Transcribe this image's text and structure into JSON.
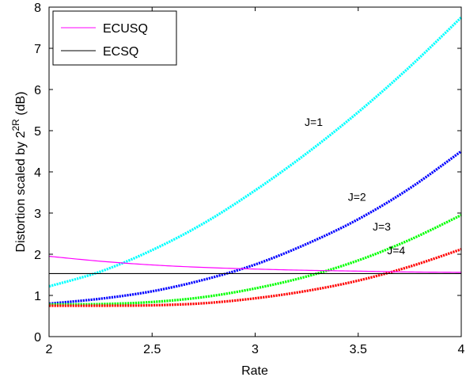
{
  "chart_data": {
    "type": "line",
    "title": "",
    "xlabel": "Rate",
    "ylabel_main": "Distortion scaled by 2",
    "ylabel_sup": "2R",
    "ylabel_unit": " (dB)",
    "xlim": [
      2,
      4
    ],
    "ylim": [
      0,
      8
    ],
    "xticks": [
      2,
      2.5,
      3,
      3.5,
      4
    ],
    "yticks": [
      0,
      1,
      2,
      3,
      4,
      5,
      6,
      7,
      8
    ],
    "xtick_labels": [
      "2",
      "2.5",
      "3",
      "3.5",
      "4"
    ],
    "ytick_labels": [
      "0",
      "1",
      "2",
      "3",
      "4",
      "5",
      "6",
      "7",
      "8"
    ],
    "grid": false,
    "legend_position": "top-left",
    "series": [
      {
        "name": "ECUSQ",
        "color": "#ff00ff",
        "style": "solid",
        "x": [
          2,
          2.25,
          2.5,
          2.75,
          3,
          3.25,
          3.5,
          3.75,
          4
        ],
        "y": [
          1.95,
          1.83,
          1.74,
          1.68,
          1.64,
          1.61,
          1.59,
          1.57,
          1.56
        ]
      },
      {
        "name": "ECSQ",
        "color": "#000000",
        "style": "solid",
        "x": [
          2,
          4
        ],
        "y": [
          1.53,
          1.53
        ]
      }
    ],
    "curves": [
      {
        "label": "J=1",
        "color": "#00ffff",
        "style": "dotted",
        "x": [
          2,
          2.25,
          2.5,
          2.75,
          3,
          3.25,
          3.5,
          3.75,
          4
        ],
        "y": [
          1.22,
          1.58,
          2.1,
          2.75,
          3.55,
          4.45,
          5.45,
          6.55,
          7.75
        ]
      },
      {
        "label": "J=2",
        "color": "#0000ff",
        "style": "dotted",
        "x": [
          2,
          2.25,
          2.5,
          2.75,
          3,
          3.25,
          3.5,
          3.75,
          4
        ],
        "y": [
          0.8,
          0.92,
          1.1,
          1.38,
          1.75,
          2.25,
          2.85,
          3.6,
          4.5
        ]
      },
      {
        "label": "J=3",
        "color": "#00ff00",
        "style": "dotted",
        "x": [
          2,
          2.25,
          2.5,
          2.75,
          3,
          3.25,
          3.5,
          3.75,
          4
        ],
        "y": [
          0.78,
          0.79,
          0.84,
          0.96,
          1.17,
          1.46,
          1.85,
          2.35,
          2.95
        ]
      },
      {
        "label": "J=4",
        "color": "#ff0000",
        "style": "dotted",
        "x": [
          2,
          2.25,
          2.5,
          2.75,
          3,
          3.25,
          3.5,
          3.75,
          4
        ],
        "y": [
          0.75,
          0.75,
          0.76,
          0.81,
          0.93,
          1.11,
          1.36,
          1.7,
          2.12
        ]
      }
    ],
    "annotations": [
      {
        "text": "J=1",
        "x": 3.24,
        "y": 5.12
      },
      {
        "text": "J=2",
        "x": 3.45,
        "y": 3.3
      },
      {
        "text": "J=3",
        "x": 3.57,
        "y": 2.58
      },
      {
        "text": "J=4",
        "x": 3.64,
        "y": 2.0
      }
    ]
  }
}
